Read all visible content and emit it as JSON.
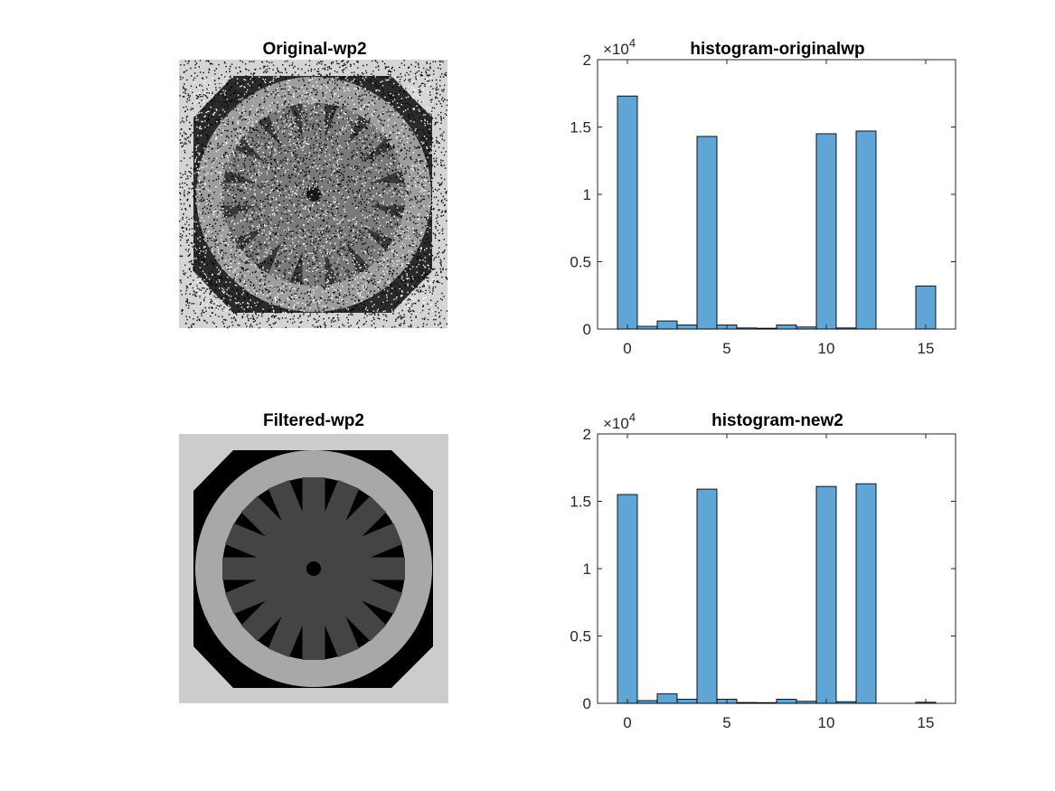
{
  "figure": {
    "panels": [
      {
        "kind": "image",
        "title": "Original-wp2",
        "noise": "salt-and-pepper",
        "frame": "#d0d0d0"
      },
      {
        "kind": "histogram",
        "title": "histogram-originalwp"
      },
      {
        "kind": "image",
        "title": "Filtered-wp2",
        "noise": "none",
        "frame": "#c8c8c8"
      },
      {
        "kind": "histogram",
        "title": "histogram-new2"
      }
    ]
  },
  "colors": {
    "bar": "#5fa6d7",
    "bar_edge": "#000000",
    "axis": "#262626"
  },
  "chart_data": [
    {
      "type": "bar",
      "title": "histogram-originalwp",
      "x": [
        0,
        1,
        2,
        3,
        4,
        5,
        6,
        7,
        8,
        9,
        10,
        11,
        12,
        13,
        14,
        15
      ],
      "values": [
        17300,
        200,
        600,
        300,
        14300,
        300,
        80,
        60,
        300,
        150,
        14500,
        80,
        14700,
        0,
        0,
        3200
      ],
      "xticks": [
        "0",
        "5",
        "10",
        "15"
      ],
      "yticks": [
        "0",
        "0.5",
        "1",
        "1.5",
        "2"
      ],
      "exponent_base": "×10",
      "exponent": "4",
      "ylim": [
        0,
        20000
      ],
      "grid": false
    },
    {
      "type": "bar",
      "title": "histogram-new2",
      "x": [
        0,
        1,
        2,
        3,
        4,
        5,
        6,
        7,
        8,
        9,
        10,
        11,
        12,
        13,
        14,
        15
      ],
      "values": [
        15500,
        200,
        700,
        300,
        15900,
        300,
        60,
        50,
        300,
        150,
        16100,
        120,
        16300,
        0,
        0,
        80
      ],
      "xticks": [
        "0",
        "5",
        "10",
        "15"
      ],
      "yticks": [
        "0",
        "0.5",
        "1",
        "1.5",
        "2"
      ],
      "exponent_base": "×10",
      "exponent": "4",
      "ylim": [
        0,
        20000
      ],
      "grid": false
    }
  ]
}
